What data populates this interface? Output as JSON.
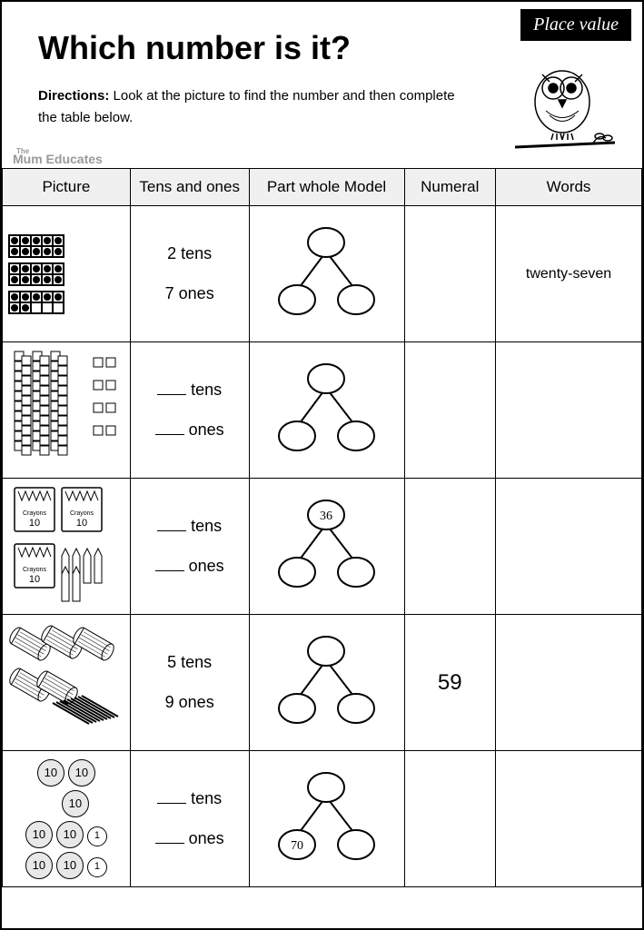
{
  "badge": "Place value",
  "title": "Which number is it?",
  "directions_label": "Directions:",
  "directions_text": " Look at the picture to find the number and then complete the table below.",
  "watermark_small": "The",
  "watermark": "Mum Educates",
  "columns": {
    "picture": "Picture",
    "tens_ones": "Tens and ones",
    "pwm": "Part whole Model",
    "numeral": "Numeral",
    "words": "Words"
  },
  "rows": [
    {
      "picture_type": "ten-frames",
      "tens": "2",
      "tens_blank": false,
      "ones": "7",
      "ones_blank": false,
      "pwm_top": "",
      "pwm_left": "",
      "pwm_right": "",
      "numeral": "",
      "words": "twenty-seven"
    },
    {
      "picture_type": "base10-blocks",
      "tens": "",
      "tens_blank": true,
      "ones": "",
      "ones_blank": true,
      "pwm_top": "",
      "pwm_left": "",
      "pwm_right": "",
      "numeral": "",
      "words": ""
    },
    {
      "picture_type": "crayons",
      "tens": "",
      "tens_blank": true,
      "ones": "",
      "ones_blank": true,
      "pwm_top": "36",
      "pwm_left": "",
      "pwm_right": "",
      "numeral": "",
      "words": ""
    },
    {
      "picture_type": "sticks",
      "tens": "5",
      "tens_blank": false,
      "ones": "9",
      "ones_blank": false,
      "pwm_top": "",
      "pwm_left": "",
      "pwm_right": "",
      "numeral": "59",
      "words": ""
    },
    {
      "picture_type": "coins",
      "tens": "",
      "tens_blank": true,
      "ones": "",
      "ones_blank": true,
      "pwm_top": "",
      "pwm_left": "70",
      "pwm_right": "",
      "numeral": "",
      "words": ""
    }
  ],
  "label_tens": "tens",
  "label_ones": "ones",
  "coin10": "10",
  "coin1": "1",
  "crayon_label": "Crayons",
  "crayon_count": "10",
  "colors": {
    "border": "#000000",
    "thead_bg": "#f0f0f0",
    "badge_bg": "#000000",
    "badge_fg": "#ffffff",
    "coin_bg": "#e8e8e8"
  }
}
